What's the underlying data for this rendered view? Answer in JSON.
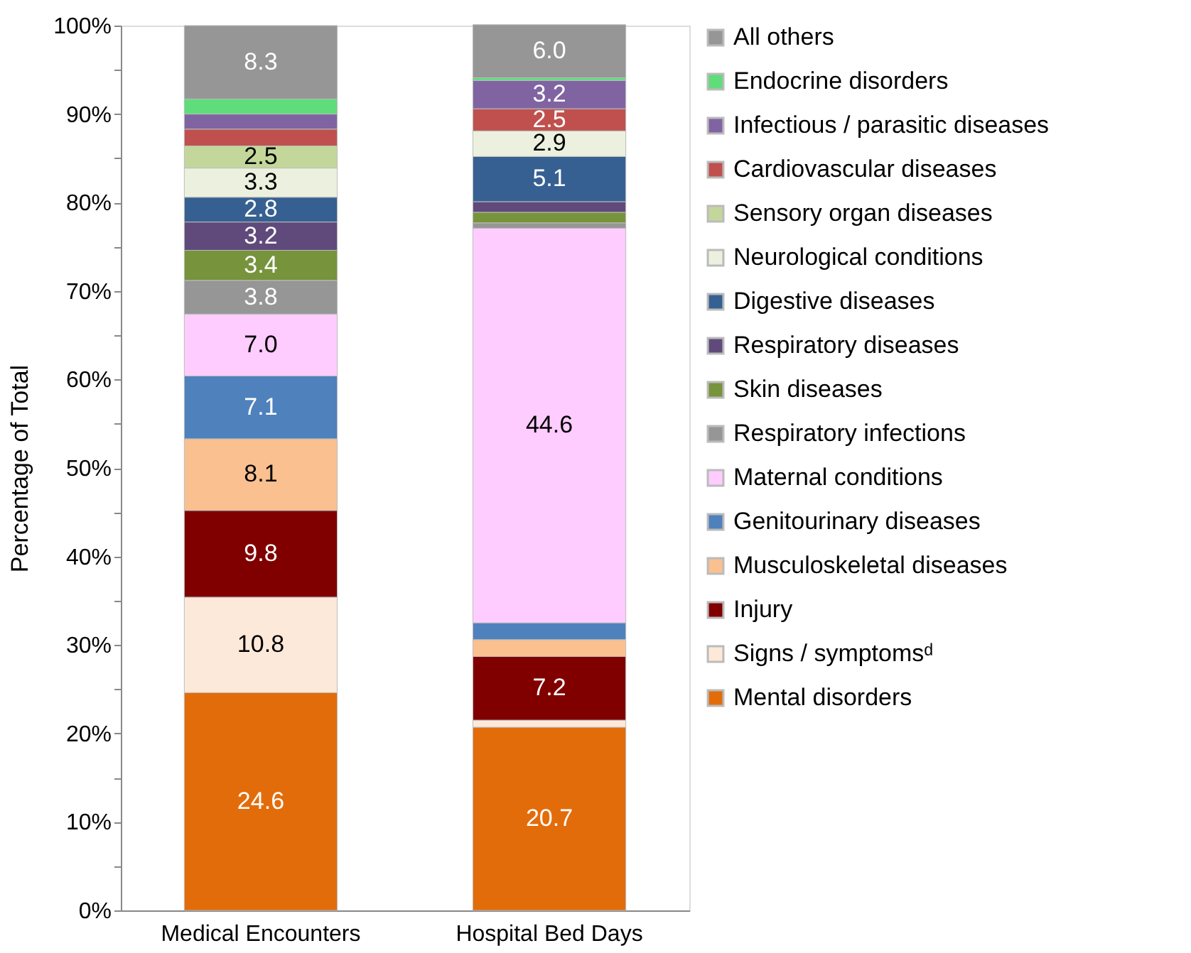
{
  "chart_data": {
    "type": "bar",
    "stacked": true,
    "ylabel": "Percentage of Total",
    "categories": [
      "Medical Encounters",
      "Hospital Bed Days"
    ],
    "ylim": [
      0,
      100
    ],
    "yticks": [
      {
        "value": 0,
        "label": "0%"
      },
      {
        "value": 5,
        "label": null
      },
      {
        "value": 10,
        "label": "10%"
      },
      {
        "value": 15,
        "label": null
      },
      {
        "value": 20,
        "label": "20%"
      },
      {
        "value": 25,
        "label": null
      },
      {
        "value": 30,
        "label": "30%"
      },
      {
        "value": 35,
        "label": null
      },
      {
        "value": 40,
        "label": "40%"
      },
      {
        "value": 45,
        "label": null
      },
      {
        "value": 50,
        "label": "50%"
      },
      {
        "value": 55,
        "label": null
      },
      {
        "value": 60,
        "label": "60%"
      },
      {
        "value": 65,
        "label": null
      },
      {
        "value": 70,
        "label": "70%"
      },
      {
        "value": 75,
        "label": null
      },
      {
        "value": 80,
        "label": "80%"
      },
      {
        "value": 85,
        "label": null
      },
      {
        "value": 90,
        "label": "90%"
      },
      {
        "value": 95,
        "label": null
      },
      {
        "value": 100,
        "label": "100%"
      }
    ],
    "grid": false,
    "legend": "right",
    "series": [
      {
        "name": "Mental disorders",
        "color": "#e36c0a",
        "values": [
          24.6,
          20.7
        ],
        "value_labels": [
          "24.6",
          "20.7"
        ]
      },
      {
        "name": "Signs / symptomsᵈ",
        "color": "#fde9d9",
        "values": [
          10.8,
          0.8
        ],
        "value_labels": [
          "10.8",
          null
        ]
      },
      {
        "name": "Injury",
        "color": "#800000",
        "values": [
          9.8,
          7.2
        ],
        "value_labels": [
          "9.8",
          "7.2"
        ]
      },
      {
        "name": "Musculoskeletal diseases",
        "color": "#fac090",
        "values": [
          8.1,
          1.9
        ],
        "value_labels": [
          "8.1",
          null
        ]
      },
      {
        "name": "Genitourinary diseases",
        "color": "#4f81bd",
        "values": [
          7.1,
          1.9
        ],
        "value_labels": [
          "7.1",
          null
        ]
      },
      {
        "name": "Maternal conditions",
        "color": "#ffccff",
        "values": [
          7.0,
          44.6
        ],
        "value_labels": [
          "7.0",
          "44.6"
        ]
      },
      {
        "name": "Respiratory infections",
        "color": "#969696",
        "values": [
          3.8,
          0.6
        ],
        "value_labels": [
          "3.8",
          null
        ]
      },
      {
        "name": "Skin diseases",
        "color": "#77933c",
        "values": [
          3.4,
          1.2
        ],
        "value_labels": [
          "3.4",
          null
        ]
      },
      {
        "name": "Respiratory diseases",
        "color": "#604a7b",
        "values": [
          3.2,
          1.2
        ],
        "value_labels": [
          "3.2",
          null
        ]
      },
      {
        "name": "Digestive diseases",
        "color": "#366092",
        "values": [
          2.8,
          5.1
        ],
        "value_labels": [
          "2.8",
          "5.1"
        ]
      },
      {
        "name": "Neurological conditions",
        "color": "#ebf1de",
        "values": [
          3.3,
          2.9
        ],
        "value_labels": [
          "3.3",
          "2.9"
        ]
      },
      {
        "name": "Sensory organ diseases",
        "color": "#c4d79b",
        "values": [
          2.5,
          0
        ],
        "value_labels": [
          "2.5",
          null
        ]
      },
      {
        "name": "Cardiovascular diseases",
        "color": "#c0504d",
        "values": [
          1.9,
          2.5
        ],
        "value_labels": [
          null,
          "2.5"
        ]
      },
      {
        "name": "Infectious / parasitic diseases",
        "color": "#8064a2",
        "values": [
          1.7,
          3.2
        ],
        "value_labels": [
          null,
          "3.2"
        ]
      },
      {
        "name": "Endocrine disorders",
        "color": "#5fdd7a",
        "values": [
          1.7,
          0.3
        ],
        "value_labels": [
          null,
          null
        ]
      },
      {
        "name": "All others",
        "color": "#969696",
        "values": [
          8.3,
          6.0
        ],
        "value_labels": [
          "8.3",
          "6.0"
        ]
      }
    ]
  }
}
